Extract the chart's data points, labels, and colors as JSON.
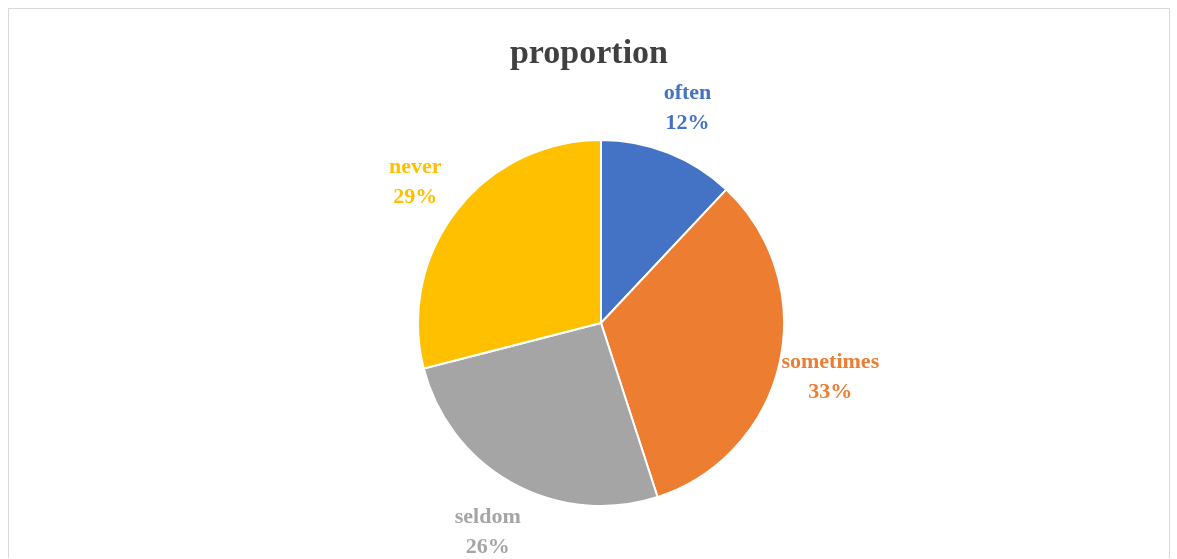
{
  "chart_data": {
    "type": "pie",
    "title": "proportion",
    "categories": [
      "often",
      "sometimes",
      "seldom",
      "never"
    ],
    "values": [
      12,
      33,
      26,
      29
    ],
    "value_labels": [
      "12%",
      "33%",
      "26%",
      "29%"
    ],
    "colors": [
      "#4472c4",
      "#ed7d31",
      "#a5a5a5",
      "#ffc000"
    ],
    "legend": false
  }
}
